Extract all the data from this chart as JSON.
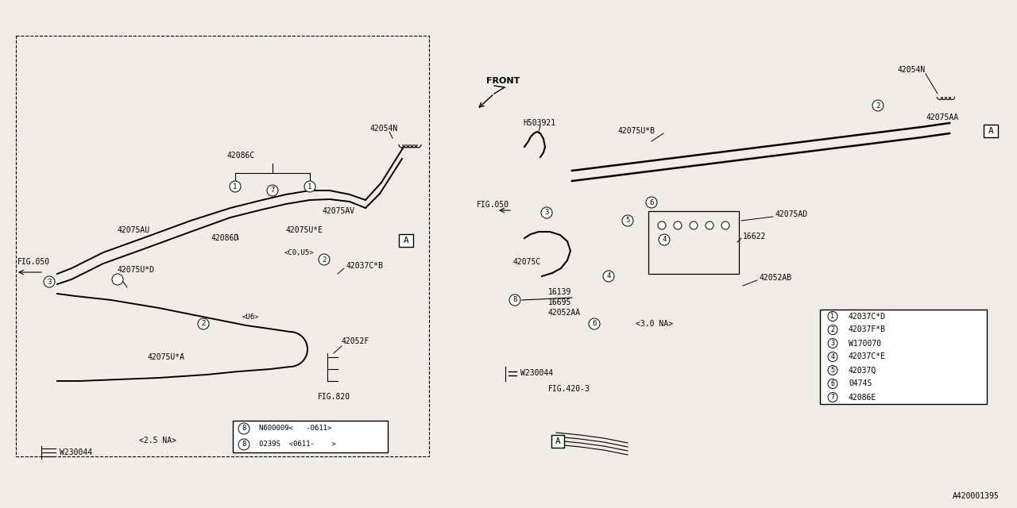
{
  "bg_color": "#f0ede8",
  "line_color": "#000000",
  "fig_id": "A420001395",
  "legend_items": [
    {
      "num": "1",
      "code": "42037C*D"
    },
    {
      "num": "2",
      "code": "42037F*B"
    },
    {
      "num": "3",
      "code": "W170070"
    },
    {
      "num": "4",
      "code": "42037C*E"
    },
    {
      "num": "5",
      "code": "42037Q"
    },
    {
      "num": "6",
      "code": "0474S"
    },
    {
      "num": "7",
      "code": "42086E"
    }
  ],
  "bolt_8a": "N600009<   -0611>",
  "bolt_8b": "0239S  <0611-    >",
  "note_25na": "<2.5 NA>",
  "note_co_u5": "<C0,U5>",
  "note_u6": "<U6>",
  "note_30na": "<3.0 NA>",
  "fig050_left": "FIG.050",
  "fig050_right": "FIG.050",
  "fig420_3": "FIG.420-3",
  "fig820": "FIG.820",
  "front_label": "FRONT"
}
